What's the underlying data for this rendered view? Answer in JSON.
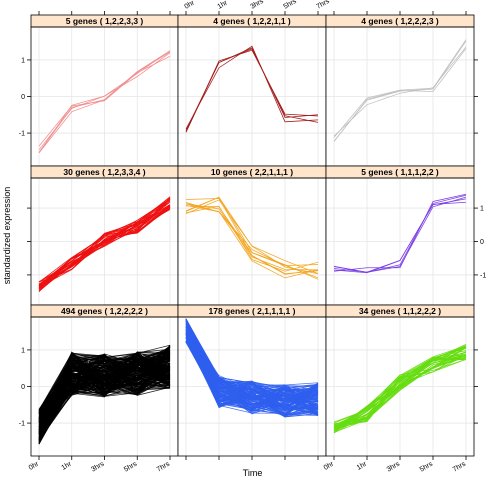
{
  "chart_data": {
    "type": "line",
    "xlabel": "Time",
    "ylabel": "standardized expression",
    "x": [
      "0hr",
      "1hr",
      "3hrs",
      "5hrs",
      "7hrs"
    ],
    "ylim": [
      -1.9,
      1.9
    ],
    "yticks": [
      -1,
      0,
      1
    ],
    "grid": true,
    "colors": {
      "strip": "#ffe5cc",
      "grid": "#e6e6e6"
    },
    "panels": [
      {
        "title": "5 genes ( 1,2,2,3,3 )",
        "color": "#f28c8c",
        "n_lines": 5,
        "profile": [
          -1.45,
          -0.3,
          -0.1,
          0.65,
          1.15
        ],
        "spread": 0.12
      },
      {
        "title": "4 genes ( 1,2,2,1,1 )",
        "color": "#a31b1b",
        "n_lines": 4,
        "profile": [
          -0.95,
          0.9,
          1.3,
          -0.6,
          -0.6
        ],
        "spread": 0.12
      },
      {
        "title": "4 genes ( 1,2,2,2,3 )",
        "color": "#c0c0c0",
        "n_lines": 4,
        "profile": [
          -1.15,
          -0.15,
          0.1,
          0.1,
          1.45
        ],
        "spread": 0.15
      },
      {
        "title": "30 genes ( 1,2,3,3,4 )",
        "color": "#ee1111",
        "n_lines": 30,
        "profile": [
          -1.35,
          -0.65,
          0.05,
          0.45,
          1.15
        ],
        "spread": 0.2
      },
      {
        "title": "10 genes ( 2,2,1,1,1 )",
        "color": "#f3a51f",
        "n_lines": 10,
        "profile": [
          1.05,
          1.05,
          -0.35,
          -0.85,
          -0.85
        ],
        "spread": 0.28
      },
      {
        "title": "5 genes ( 1,1,1,2,2 )",
        "color": "#7b3fe4",
        "n_lines": 5,
        "profile": [
          -0.85,
          -0.8,
          -0.7,
          1.05,
          1.3
        ],
        "spread": 0.15
      },
      {
        "title": "494 genes ( 1,2,2,2,2 )",
        "color": "#000000",
        "n_lines": 220,
        "profile": [
          -1.1,
          0.35,
          0.3,
          0.35,
          0.55
        ],
        "spread": 0.6
      },
      {
        "title": "178 genes ( 2,1,1,1,1 )",
        "color": "#2f5fef",
        "n_lines": 150,
        "profile": [
          1.55,
          -0.15,
          -0.3,
          -0.4,
          -0.35
        ],
        "spread": 0.45
      },
      {
        "title": "34 genes ( 1,1,2,2,2 )",
        "color": "#66dd11",
        "n_lines": 34,
        "profile": [
          -1.1,
          -0.75,
          0.1,
          0.6,
          0.95
        ],
        "spread": 0.22
      }
    ]
  }
}
